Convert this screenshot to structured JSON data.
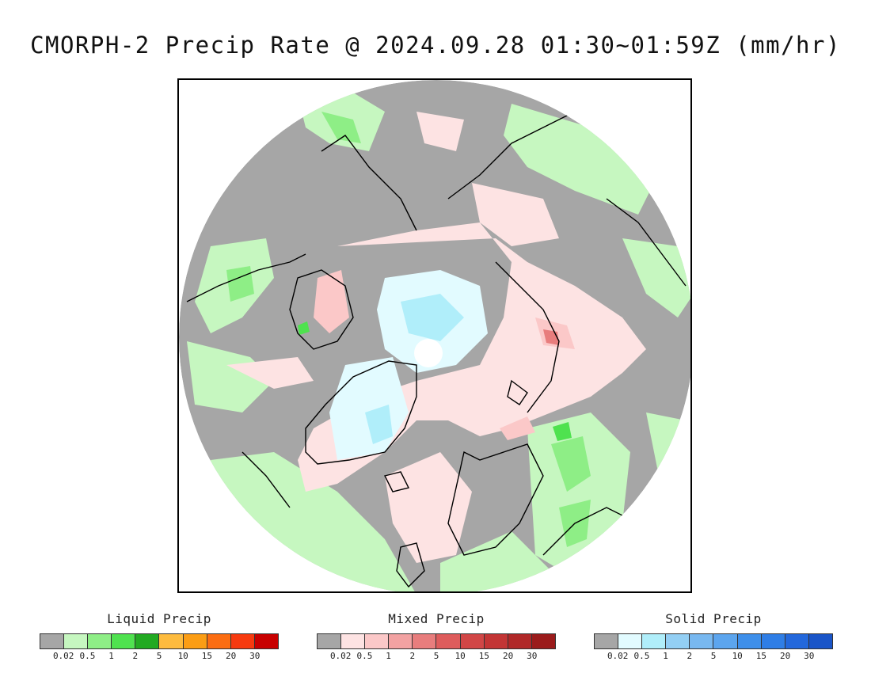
{
  "title": "CMORPH-2 Precip Rate @ 2024.09.28 01:30~01:59Z (mm/hr)",
  "legends": [
    {
      "title": "Liquid Precip",
      "colors": [
        "#a6a6a6",
        "#c6f7c0",
        "#8eee86",
        "#4fe24f",
        "#22aa22",
        "#fdbb3e",
        "#fb9d14",
        "#fb6d12",
        "#f73a0f",
        "#c80000"
      ],
      "ticks": [
        "0.02",
        "0.5",
        "1",
        "2",
        "5",
        "10",
        "15",
        "20",
        "30"
      ]
    },
    {
      "title": "Mixed Precip",
      "colors": [
        "#a6a6a6",
        "#fde3e3",
        "#fbc8c8",
        "#f2a2a2",
        "#e87d7d",
        "#de5c5c",
        "#d14646",
        "#c33535",
        "#b02828",
        "#9b1b1b"
      ],
      "ticks": [
        "0.02",
        "0.5",
        "1",
        "2",
        "5",
        "10",
        "15",
        "20",
        "30"
      ]
    },
    {
      "title": "Solid Precip",
      "colors": [
        "#a6a6a6",
        "#e2fbff",
        "#b0eefa",
        "#93cff4",
        "#78b8f0",
        "#5ca5ee",
        "#3e8fea",
        "#2f7ee6",
        "#2368dc",
        "#1a55c8"
      ],
      "ticks": [
        "0.02",
        "0.5",
        "1",
        "2",
        "5",
        "10",
        "15",
        "20",
        "30"
      ]
    }
  ],
  "map": {
    "projection": "north-polar-stereographic",
    "colors": {
      "no_precip": "#a6a6a6",
      "liquid_light": "#c6f7c0",
      "liquid_mid": "#8eee86",
      "liquid_heavy": "#4fe24f",
      "mixed_light": "#fde3e3",
      "mixed_mid": "#fbc8c8",
      "mixed_heavy": "#e87d7d",
      "solid_light": "#e2fbff",
      "solid_mid": "#b0eefa",
      "coastline": "#000000"
    }
  }
}
